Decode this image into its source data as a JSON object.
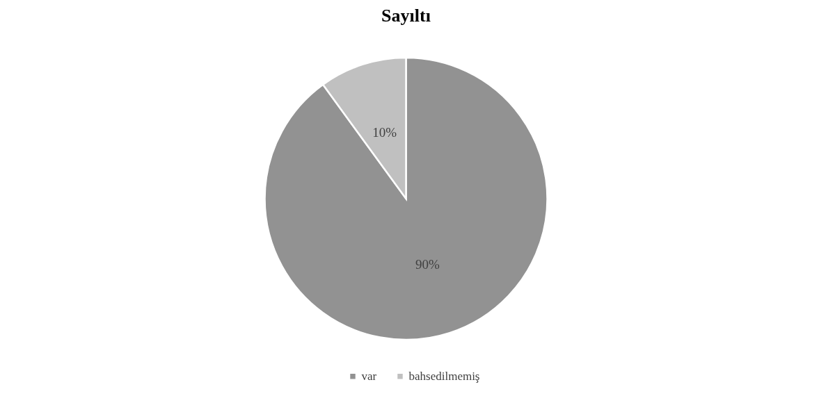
{
  "chart_data": {
    "type": "pie",
    "title": "Sayıltı",
    "categories": [
      "var",
      "bahsedilmemiş"
    ],
    "values": [
      90,
      10
    ],
    "colors": [
      "#929292",
      "#c0c0c0"
    ],
    "value_labels": [
      "90%",
      "10%"
    ],
    "legend": "bottom"
  }
}
